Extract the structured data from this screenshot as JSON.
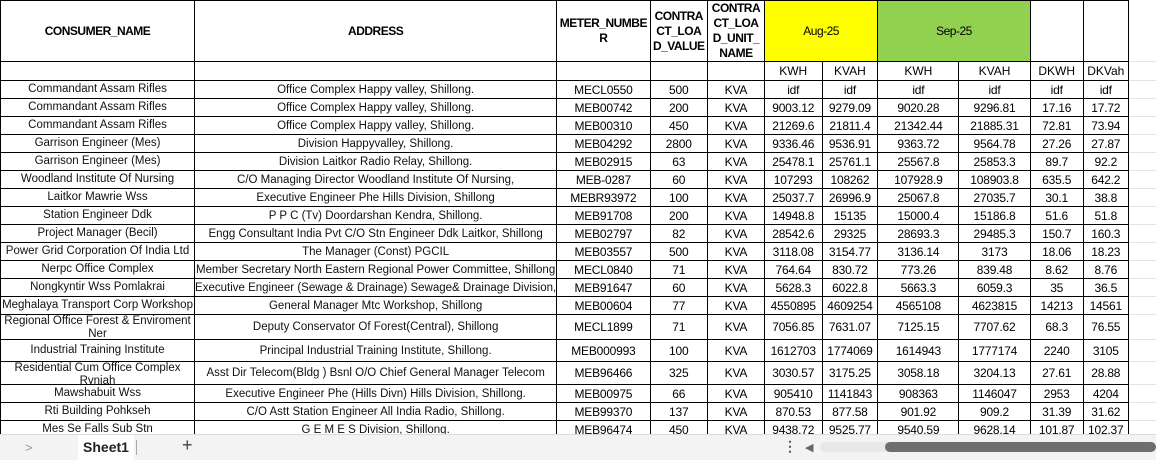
{
  "headers": {
    "consumer_name": "CONSUMER_NAME",
    "address": "ADDRESS",
    "meter_number": "METER_NUMBE R",
    "contract_load_value": "CONTRA CT_LOA D_VALUE",
    "contract_load_unit": "CONTRA CT_LOA D_UNIT_ NAME",
    "aug": "Aug-25",
    "sep": "Sep-25",
    "sub": [
      "KWH",
      "KVAH",
      "KWH",
      "KVAH",
      "DKWH",
      "DKVah"
    ]
  },
  "colors": {
    "aug": "#ffff00",
    "sep": "#92d050"
  },
  "rows": [
    [
      "Commandant Assam Rifles",
      "Office Complex Happy valley, Shillong.",
      "MECL0550",
      "500",
      "KVA",
      "idf",
      "idf",
      "idf",
      "idf",
      "idf",
      "idf"
    ],
    [
      "Commandant Assam Rifles",
      "Office Complex Happy valley, Shillong.",
      "MEB00742",
      "200",
      "KVA",
      "9003.12",
      "9279.09",
      "9020.28",
      "9296.81",
      "17.16",
      "17.72"
    ],
    [
      "Commandant Assam Rifles",
      "Office Complex Happy valley, Shillong.",
      "MEB00310",
      "450",
      "KVA",
      "21269.6",
      "21811.4",
      "21342.44",
      "21885.31",
      "72.81",
      "73.94"
    ],
    [
      "Garrison Engineer (Mes)",
      "Division Happyvalley, Shillong.",
      "MEB04292",
      "2800",
      "KVA",
      "9336.46",
      "9536.91",
      "9363.72",
      "9564.78",
      "27.26",
      "27.87"
    ],
    [
      "Garrison Engineer (Mes)",
      "Division Laitkor Radio Relay, Shillong.",
      "MEB02915",
      "63",
      "KVA",
      "25478.1",
      "25761.1",
      "25567.8",
      "25853.3",
      "89.7",
      "92.2"
    ],
    [
      "Woodland Institute Of Nursing",
      "C/O Managing Director Woodland Institute Of Nursing,",
      "MEB-0287",
      "60",
      "KVA",
      "107293",
      "108262",
      "107928.9",
      "108903.8",
      "635.5",
      "642.2"
    ],
    [
      "Laitkor Mawrie Wss",
      "Executive Engineer Phe Hills Division, Shillong",
      "MEBR93972",
      "100",
      "KVA",
      "25037.7",
      "26996.9",
      "25067.8",
      "27035.7",
      "30.1",
      "38.8"
    ],
    [
      "Station Engineer Ddk",
      "P P C (Tv) Doordarshan Kendra, Shillong.",
      "MEB91708",
      "200",
      "KVA",
      "14948.8",
      "15135",
      "15000.4",
      "15186.8",
      "51.6",
      "51.8"
    ],
    [
      "Project Manager (Becil)",
      "Engg Consultant India Pvt C/O Stn Engineer Ddk Laitkor, Shillong",
      "MEB02797",
      "82",
      "KVA",
      "28542.6",
      "29325",
      "28693.3",
      "29485.3",
      "150.7",
      "160.3"
    ],
    [
      "Power Grid Corporation Of India Ltd",
      "The Manager (Const) PGCIL",
      "MEB03557",
      "500",
      "KVA",
      "3118.08",
      "3154.77",
      "3136.14",
      "3173",
      "18.06",
      "18.23"
    ],
    [
      "Nerpc Office Complex",
      "Member Secretary North Eastern Regional Power Committee, Shillong",
      "MECL0840",
      "71",
      "KVA",
      "764.64",
      "830.72",
      "773.26",
      "839.48",
      "8.62",
      "8.76"
    ],
    [
      "Nongkyntir Wss Pomlakrai",
      "Executive Engineer (Sewage & Drainage) Sewage& Drainage Division,",
      "MEB91647",
      "60",
      "KVA",
      "5628.3",
      "6022.8",
      "5663.3",
      "6059.3",
      "35",
      "36.5"
    ],
    [
      "Meghalaya Transport Corp Workshop",
      "General Manager Mtc Workshop, Shillong",
      "MEB00604",
      "77",
      "KVA",
      "4550895",
      "4609254",
      "4565108",
      "4623815",
      "14213",
      "14561"
    ],
    [
      "Regional Office Forest & Enviroment Ner",
      "Deputy Conservator Of Forest(Central), Shillong",
      "MECL1899",
      "71",
      "KVA",
      "7056.85",
      "7631.07",
      "7125.15",
      "7707.62",
      "68.3",
      "76.55"
    ],
    [
      "Industrial Training Institute",
      "Principal Industrial Training Institute, Shillong.",
      "MEB000993",
      "100",
      "KVA",
      "1612703",
      "1774069",
      "1614943",
      "1777174",
      "2240",
      "3105"
    ],
    [
      "Residential Cum Office Complex Rynjah",
      "Asst Dir Telecom(Bldg ) Bsnl O/O Chief General Manager Telecom",
      "MEB96466",
      "325",
      "KVA",
      "3030.57",
      "3175.25",
      "3058.18",
      "3204.13",
      "27.61",
      "28.88"
    ],
    [
      "Mawshabuit  Wss",
      "Executive Engineer Phe (Hills Divn) Hills Division, Shillong.",
      "MEB00975",
      "66",
      "KVA",
      "905410",
      "1141843",
      "908363",
      "1146047",
      "2953",
      "4204"
    ],
    [
      "Rti Building Pohkseh",
      "C/O Astt Station Engineer All India Radio, Shillong.",
      "MEB99370",
      "137",
      "KVA",
      "870.53",
      "877.58",
      "901.92",
      "909.2",
      "31.39",
      "31.62"
    ],
    [
      "Mes Se Falls Sub Stn",
      "G E M E S Division, Shillong.",
      "MEB96474",
      "450",
      "KVA",
      "9438.72",
      "9525.77",
      "9540.59",
      "9628.14",
      "101.87",
      "102.37"
    ]
  ],
  "tabs": {
    "active": "Sheet1",
    "add": "+",
    "prev": ">"
  }
}
